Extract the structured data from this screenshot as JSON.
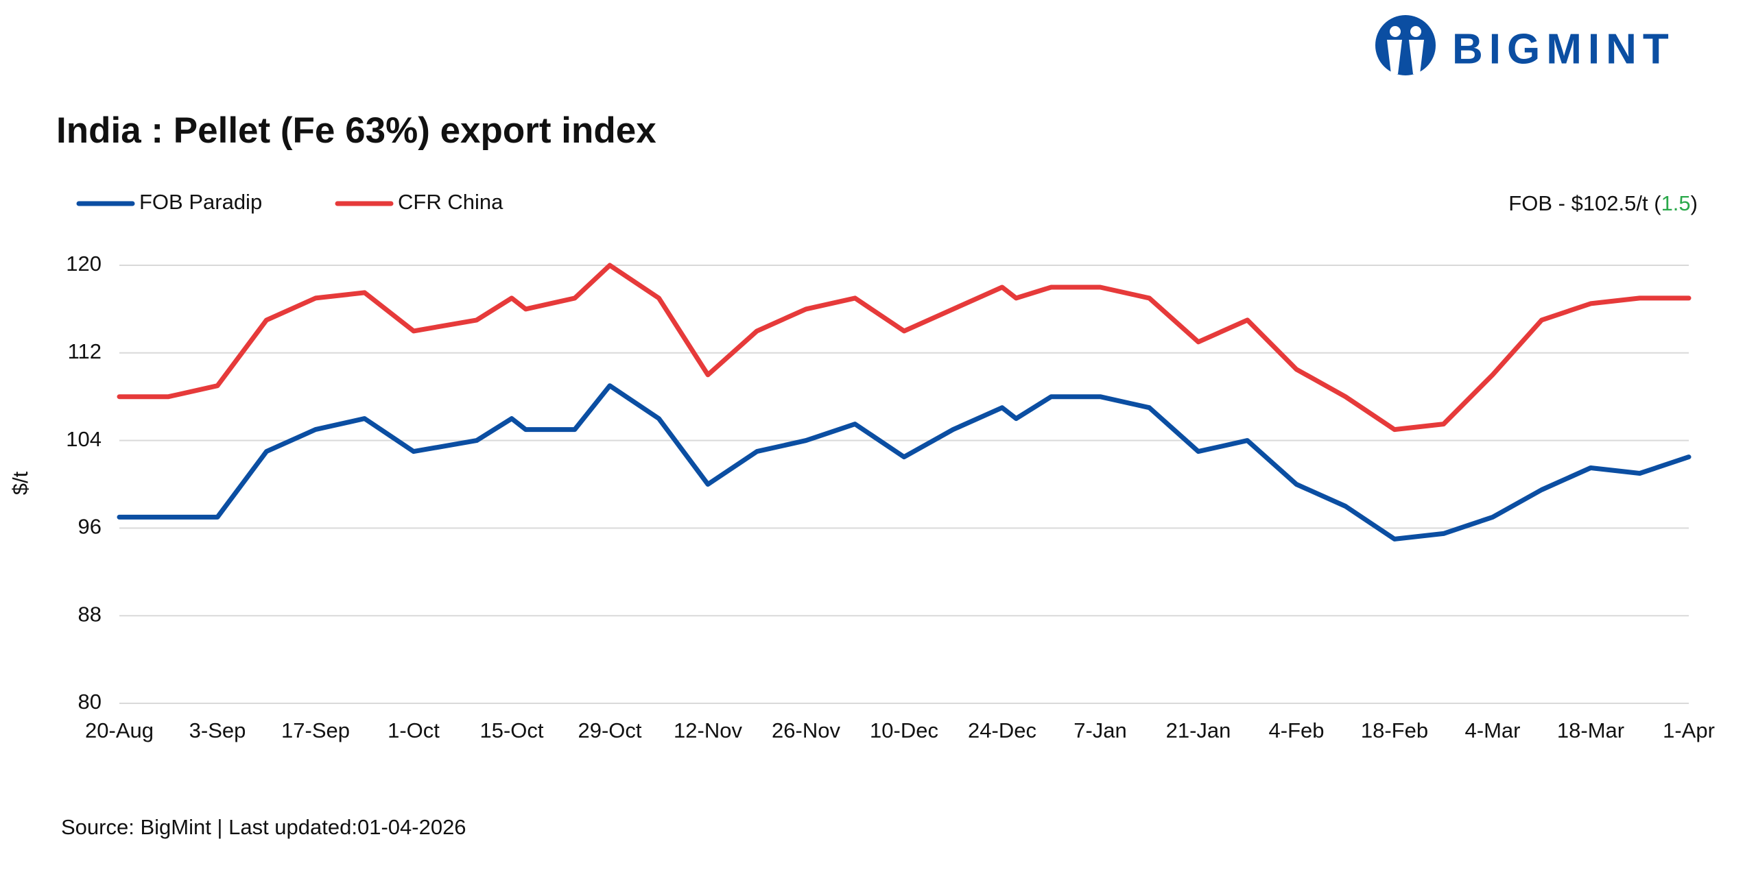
{
  "logo": "BIGMINT",
  "chart_data": {
    "type": "line",
    "title": "India : Pellet (Fe 63%) export index",
    "y_label": "$/t",
    "source": "Source: BigMint | Last updated:01-04-2026",
    "annotation": {
      "text": "FOB - $102.5/t (",
      "change": "1.5",
      "close": ")",
      "change_color": "#2aa84a"
    },
    "x": [
      "20-Aug",
      "27-Aug",
      "3-Sep",
      "10-Sep",
      "17-Sep",
      "24-Sep",
      "1-Oct",
      "10-Oct",
      "15-Oct",
      "17-Oct",
      "24-Oct",
      "29-Oct",
      "5-Nov",
      "12-Nov",
      "19-Nov",
      "26-Nov",
      "3-Dec",
      "10-Dec",
      "17-Dec",
      "24-Dec",
      "26-Dec",
      "31-Dec",
      "7-Jan",
      "14-Jan",
      "21-Jan",
      "28-Jan",
      "4-Feb",
      "11-Feb",
      "18-Feb",
      "25-Feb",
      "4-Mar",
      "11-Mar",
      "18-Mar",
      "25-Mar",
      "1-Apr"
    ],
    "series": [
      {
        "name": "FOB Paradip",
        "color": "#0b4ea2",
        "values": [
          97,
          97,
          97,
          103,
          105,
          106,
          103,
          104,
          106,
          105,
          105,
          109,
          106,
          100,
          103,
          104,
          105.5,
          102.5,
          105,
          107,
          106,
          108,
          108,
          107,
          103,
          104,
          100,
          98,
          95,
          95.5,
          97,
          99.5,
          101.5,
          101,
          102.5
        ]
      },
      {
        "name": "CFR China",
        "color": "#e63a3a",
        "values": [
          108,
          108,
          109,
          115,
          117,
          117.5,
          114,
          115,
          117,
          116,
          117,
          120,
          117,
          110,
          114,
          116,
          117,
          114,
          116,
          118,
          117,
          118,
          118,
          117,
          113,
          115,
          110.5,
          108,
          105,
          105.5,
          110,
          115,
          116.5,
          117,
          117
        ]
      }
    ],
    "xlim": [
      "20-Aug",
      "1-Apr"
    ],
    "xticks": [
      "20-Aug",
      "3-Sep",
      "17-Sep",
      "1-Oct",
      "15-Oct",
      "29-Oct",
      "12-Nov",
      "26-Nov",
      "10-Dec",
      "24-Dec",
      "7-Jan",
      "21-Jan",
      "4-Feb",
      "18-Feb",
      "4-Mar",
      "18-Mar",
      "1-Apr"
    ],
    "ylim": [
      80,
      120
    ],
    "yticks": [
      80,
      88,
      96,
      104,
      112,
      120
    ],
    "grid": true,
    "legend": "top-left"
  }
}
